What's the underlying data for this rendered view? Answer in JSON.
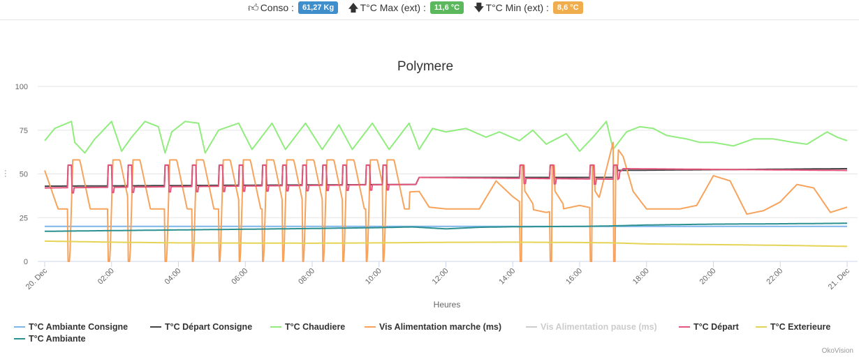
{
  "header": {
    "conso_label": "Conso :",
    "conso_value": "61,27 Kg",
    "tmax_label": "T°C Max (ext) :",
    "tmax_value": "11,6 °C",
    "tmin_label": "T°C Min (ext) :",
    "tmin_value": "8,6 °C",
    "icons": [
      "thumbs-up-icon",
      "arrow-up-icon",
      "arrow-down-icon"
    ]
  },
  "credits": "OkoVision",
  "chart_data": {
    "type": "line",
    "title": "Polymere",
    "xlabel": "Heures",
    "ylabel": "",
    "ylim": [
      0,
      100
    ],
    "yticks": [
      0,
      25,
      50,
      75,
      100
    ],
    "xlim": [
      0,
      24
    ],
    "xticks": [
      0,
      2,
      4,
      6,
      8,
      10,
      12,
      14,
      16,
      18,
      20,
      22,
      24
    ],
    "xtick_labels": [
      "20. Dec",
      "02:00",
      "04:00",
      "06:00",
      "08:00",
      "10:00",
      "12:00",
      "14:00",
      "16:00",
      "18:00",
      "20:00",
      "22:00",
      "21. Dec"
    ],
    "grid": true,
    "legend_position": "bottom",
    "cycle_starts": [
      0.7,
      1.9,
      2.5,
      3.6,
      4.4,
      5.2,
      5.8,
      6.5,
      7.1,
      7.7,
      8.3,
      8.9,
      9.6,
      10.1,
      14.2,
      15.1,
      16.3,
      17.0
    ],
    "series": [
      {
        "name": "T°C Ambiante Consigne",
        "color": "#7cb5ec",
        "x": [
          0,
          24
        ],
        "y": [
          20,
          20
        ]
      },
      {
        "name": "T°C Départ Consigne",
        "color": "#434348",
        "x": [
          0,
          11.1,
          11.2,
          17,
          17.1,
          24
        ],
        "y": [
          43,
          44,
          48,
          48,
          52,
          53
        ],
        "spike_to": 55
      },
      {
        "name": "T°C Chaudiere",
        "color": "#90ed7d",
        "x": [
          0,
          0.3,
          0.8,
          0.9,
          1.2,
          1.5,
          2.0,
          2.3,
          2.6,
          3.0,
          3.4,
          3.6,
          3.8,
          4.2,
          4.6,
          4.8,
          5.2,
          5.8,
          6.2,
          6.8,
          7.2,
          7.8,
          8.3,
          8.8,
          9.2,
          9.8,
          10.3,
          10.9,
          11.2,
          11.6,
          12.0,
          12.6,
          13.2,
          13.6,
          14.2,
          14.6,
          15.0,
          15.6,
          16.0,
          16.4,
          16.8,
          17.0,
          17.4,
          17.8,
          18.2,
          18.6,
          19.2,
          19.6,
          20.0,
          20.6,
          21.2,
          21.8,
          22.4,
          22.8,
          23.4,
          23.7,
          24
        ],
        "y": [
          69,
          76,
          80,
          68,
          62,
          70,
          80,
          63,
          71,
          80,
          77,
          62,
          74,
          80,
          79,
          62,
          75,
          79,
          64,
          79,
          64,
          79,
          64,
          78,
          64,
          79,
          64,
          79,
          64,
          76,
          74,
          76,
          71,
          74,
          69,
          75,
          67,
          73,
          63,
          71,
          80,
          64,
          74,
          77,
          76,
          72,
          70,
          68,
          68,
          66,
          70,
          70,
          68,
          67,
          74,
          71,
          69
        ]
      },
      {
        "name": "Vis Alimentation marche (ms)",
        "color": "#f7a35c",
        "x": [
          0,
          0.4,
          0.8,
          11.2,
          11.5,
          12.0,
          12.5,
          13.0,
          13.5,
          14.0,
          14.5,
          15.0,
          15.5,
          16.0,
          16.5,
          17.0,
          17.3,
          17.6,
          18.0,
          18.5,
          19.0,
          19.5,
          20.0,
          20.5,
          21.0,
          21.5,
          22.0,
          22.5,
          23.0,
          23.5,
          24
        ],
        "y": [
          52,
          30,
          30,
          40,
          31,
          30,
          30,
          30,
          46,
          37,
          30,
          28,
          30,
          32,
          30,
          68,
          60,
          40,
          30,
          30,
          30,
          32,
          49,
          46,
          27,
          29,
          34,
          44,
          42,
          28,
          31
        ]
      },
      {
        "name": "Vis Alimentation pause (ms)",
        "color": "#cccccc",
        "visible": false,
        "x": [],
        "y": []
      },
      {
        "name": "T°C Départ",
        "color": "#e4567b",
        "x": [
          0,
          11.1,
          11.2,
          17,
          17.3,
          24
        ],
        "y": [
          42,
          44,
          48,
          47,
          53,
          52
        ],
        "spike_to": 55
      },
      {
        "name": "T°C Exterieure",
        "color": "#e4d354",
        "x": [
          0,
          2,
          4,
          6,
          8,
          10,
          12,
          14,
          16,
          17,
          18,
          20,
          22,
          24
        ],
        "y": [
          11.6,
          11.0,
          10.6,
          10.5,
          10.4,
          10.6,
          10.9,
          11.0,
          10.8,
          10.6,
          10.0,
          9.6,
          9.2,
          8.6
        ]
      },
      {
        "name": "T°C Ambiante",
        "color": "#2b908f",
        "x": [
          0,
          2,
          4,
          6,
          8,
          10,
          11,
          12,
          13,
          14,
          16,
          17,
          18,
          20,
          22,
          24
        ],
        "y": [
          17.2,
          17.6,
          18.0,
          18.4,
          18.8,
          19.3,
          19.7,
          18.6,
          19.5,
          19.8,
          20.0,
          20.3,
          20.8,
          21.3,
          21.5,
          21.8
        ]
      }
    ]
  }
}
